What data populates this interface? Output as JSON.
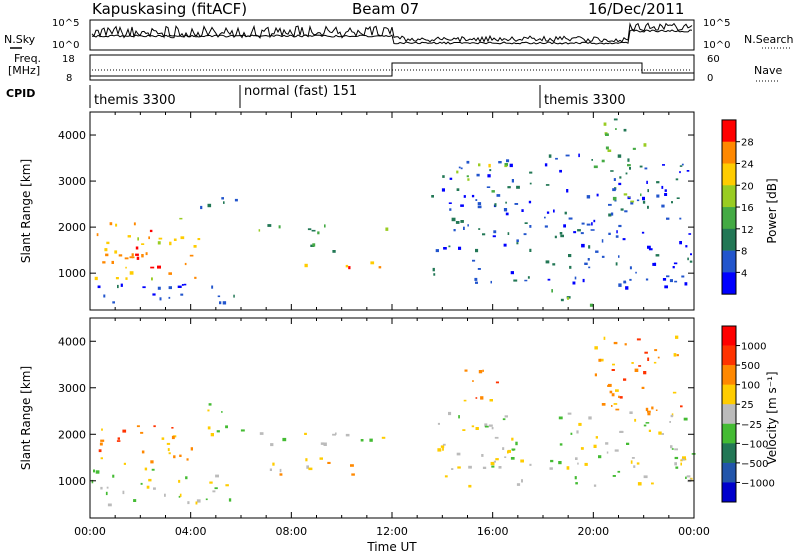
{
  "header": {
    "station": "Kapuskasing (fitACF)",
    "beam": "Beam 07",
    "date": "16/Dec/2011"
  },
  "sky_panel": {
    "left_label": "N.Sky",
    "right_label": "N.Search",
    "ticks_left": [
      "10^5",
      "10^0"
    ],
    "ticks_right": [
      "10^5",
      "10^0"
    ]
  },
  "freq_panel": {
    "left_label_1": "Freq.",
    "left_label_2": "[MHz]",
    "right_label": "Nave",
    "ticks_left": [
      "18",
      "8"
    ],
    "ticks_right": [
      "60",
      "0"
    ]
  },
  "cpid_panel": {
    "label": "CPID",
    "segments": [
      {
        "name": "themis 3300",
        "start_hour": 0
      },
      {
        "name": "normal (fast) 151",
        "start_hour": 6
      },
      {
        "name": "themis 3300",
        "start_hour": 18
      }
    ]
  },
  "chart_data": [
    {
      "type": "heatmap",
      "name": "power",
      "ylabel": "Slant Range [km]",
      "xlabel": "",
      "xlim": [
        0,
        24
      ],
      "ylim": [
        200,
        4500
      ],
      "yticks": [
        "1000",
        "2000",
        "3000",
        "4000"
      ],
      "colorbar": {
        "label": "Power [dB]",
        "ticks": [
          "4",
          "8",
          "12",
          "16",
          "20",
          "24",
          "28"
        ],
        "colors": [
          "#0000ff",
          "#2255cc",
          "#227755",
          "#44aa44",
          "#99cc22",
          "#ffcc00",
          "#ff8800",
          "#ff0000"
        ]
      },
      "regions": [
        {
          "t0": 0.1,
          "t1": 4.3,
          "r0": 900,
          "r1": 2200,
          "level": 5
        },
        {
          "t0": 1.5,
          "t1": 2.7,
          "r0": 1000,
          "r1": 2100,
          "level": 7
        },
        {
          "t0": 0.0,
          "t1": 6.0,
          "r0": 300,
          "r1": 800,
          "level": 1
        },
        {
          "t0": 4.3,
          "t1": 6.0,
          "r0": 2300,
          "r1": 2700,
          "level": 1
        },
        {
          "t0": 6.0,
          "t1": 12.0,
          "r0": 1900,
          "r1": 2100,
          "level": 3
        },
        {
          "t0": 7.0,
          "t1": 12.0,
          "r0": 1150,
          "r1": 1300,
          "level": 6
        },
        {
          "t0": 8.0,
          "t1": 11.0,
          "r0": 1500,
          "r1": 1650,
          "level": 3
        },
        {
          "t0": 13.5,
          "t1": 17.5,
          "r0": 800,
          "r1": 3500,
          "level": 1
        },
        {
          "t0": 14.5,
          "t1": 16.5,
          "r0": 2800,
          "r1": 3400,
          "level": 4
        },
        {
          "t0": 18.0,
          "t1": 24.0,
          "r0": 700,
          "r1": 3600,
          "level": 1
        },
        {
          "t0": 18.0,
          "t1": 20.0,
          "r0": 300,
          "r1": 700,
          "level": 3
        },
        {
          "t0": 20.0,
          "t1": 22.0,
          "r0": 2500,
          "r1": 4400,
          "level": 3
        }
      ]
    },
    {
      "type": "heatmap",
      "name": "velocity",
      "ylabel": "Slant Range [km]",
      "xlabel": "Time UT",
      "xlim": [
        0,
        24
      ],
      "ylim": [
        200,
        4500
      ],
      "xticks": [
        "00:00",
        "04:00",
        "08:00",
        "12:00",
        "16:00",
        "20:00",
        "00:00"
      ],
      "yticks": [
        "1000",
        "2000",
        "3000",
        "4000"
      ],
      "colorbar": {
        "label": "Velocity [m s⁻¹]",
        "ticks": [
          "1000",
          "500",
          "100",
          "25",
          "−25",
          "−100",
          "−500",
          "−1000"
        ],
        "colors": [
          "#0000cc",
          "#2255aa",
          "#227755",
          "#44bb33",
          "#bbbbbb",
          "#ffcc00",
          "#ff8800",
          "#ff3300",
          "#ff0000"
        ]
      },
      "regions": [
        {
          "t0": 0.1,
          "t1": 4.3,
          "r0": 1300,
          "r1": 2200,
          "level": 6
        },
        {
          "t0": 0.0,
          "t1": 6.0,
          "r0": 500,
          "r1": 1300,
          "level": 4
        },
        {
          "t0": 4.3,
          "t1": 6.0,
          "r0": 2000,
          "r1": 2700,
          "level": 4
        },
        {
          "t0": 6.0,
          "t1": 12.0,
          "r0": 1800,
          "r1": 2100,
          "level": 4
        },
        {
          "t0": 7.0,
          "t1": 11.0,
          "r0": 1150,
          "r1": 1550,
          "level": 5
        },
        {
          "t0": 13.5,
          "t1": 17.5,
          "r0": 900,
          "r1": 2500,
          "level": 4
        },
        {
          "t0": 14.5,
          "t1": 16.5,
          "r0": 2700,
          "r1": 3400,
          "level": 6
        },
        {
          "t0": 18.0,
          "t1": 24.0,
          "r0": 900,
          "r1": 2500,
          "level": 4
        },
        {
          "t0": 20.0,
          "t1": 23.5,
          "r0": 2400,
          "r1": 4200,
          "level": 6
        }
      ]
    }
  ]
}
